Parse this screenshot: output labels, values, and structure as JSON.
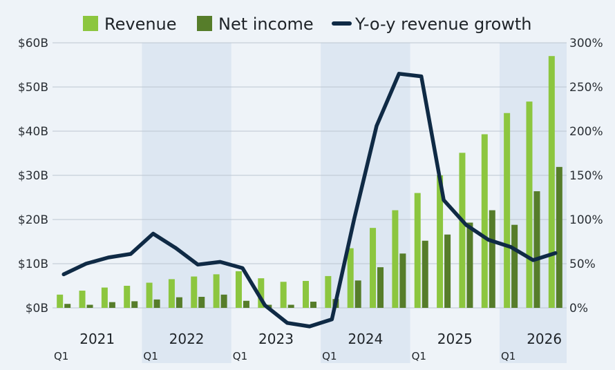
{
  "chart_data": {
    "type": "bar",
    "categories": [
      "2021 Q1",
      "2021 Q2",
      "2021 Q3",
      "2021 Q4",
      "2022 Q1",
      "2022 Q2",
      "2022 Q3",
      "2022 Q4",
      "2023 Q1",
      "2023 Q2",
      "2023 Q3",
      "2023 Q4",
      "2024 Q1",
      "2024 Q2",
      "2024 Q3",
      "2024 Q4",
      "2025 Q1",
      "2025 Q2",
      "2025 Q3",
      "2025 Q4",
      "2026 Q1",
      "2026 Q2",
      "2026 Q3"
    ],
    "series": [
      {
        "name": "Revenue",
        "type": "bar",
        "axis": "left",
        "color": "#8cc63f",
        "values": [
          3.0,
          3.9,
          4.6,
          5.0,
          5.7,
          6.5,
          7.1,
          7.6,
          8.3,
          6.7,
          5.9,
          6.1,
          7.2,
          13.5,
          18.1,
          22.1,
          26.0,
          30.0,
          35.1,
          39.3,
          44.1,
          46.7,
          57.0
        ]
      },
      {
        "name": "Net income",
        "type": "bar",
        "axis": "left",
        "color": "#567d2a",
        "values": [
          0.9,
          0.7,
          1.3,
          1.5,
          1.9,
          2.4,
          2.5,
          3.0,
          1.6,
          0.7,
          0.7,
          1.4,
          2.0,
          6.2,
          9.2,
          12.3,
          15.2,
          16.6,
          19.3,
          22.1,
          18.8,
          26.4,
          31.9
        ]
      },
      {
        "name": "Y-o-y revenue growth",
        "type": "line",
        "axis": "right",
        "color": "#0f2a45",
        "values": [
          38,
          50,
          57,
          61,
          84,
          68,
          49,
          52,
          45,
          3,
          -17,
          -21,
          -13,
          101,
          206,
          265,
          262,
          122,
          94,
          77,
          69,
          54,
          62
        ]
      }
    ],
    "left_axis": {
      "ylim": [
        0,
        60
      ],
      "ticks": [
        0,
        10,
        20,
        30,
        40,
        50,
        60
      ],
      "tick_labels": [
        "$0B",
        "$10B",
        "$20B",
        "$30B",
        "$40B",
        "$50B",
        "$60B"
      ]
    },
    "right_axis": {
      "ylim": [
        0,
        300
      ],
      "ticks": [
        0,
        50,
        100,
        150,
        200,
        250,
        300
      ],
      "tick_labels": [
        "0%",
        "50%",
        "100%",
        "150%",
        "200%",
        "250%",
        "300%"
      ]
    },
    "years": [
      "2021",
      "2022",
      "2023",
      "2024",
      "2025",
      "2026"
    ],
    "quarter_marker": "Q1",
    "legend": {
      "position": "top",
      "entries": [
        "Revenue",
        "Net income",
        "Y-o-y revenue growth"
      ]
    },
    "grid": true,
    "title": "",
    "xlabel": "",
    "ylabel": ""
  }
}
